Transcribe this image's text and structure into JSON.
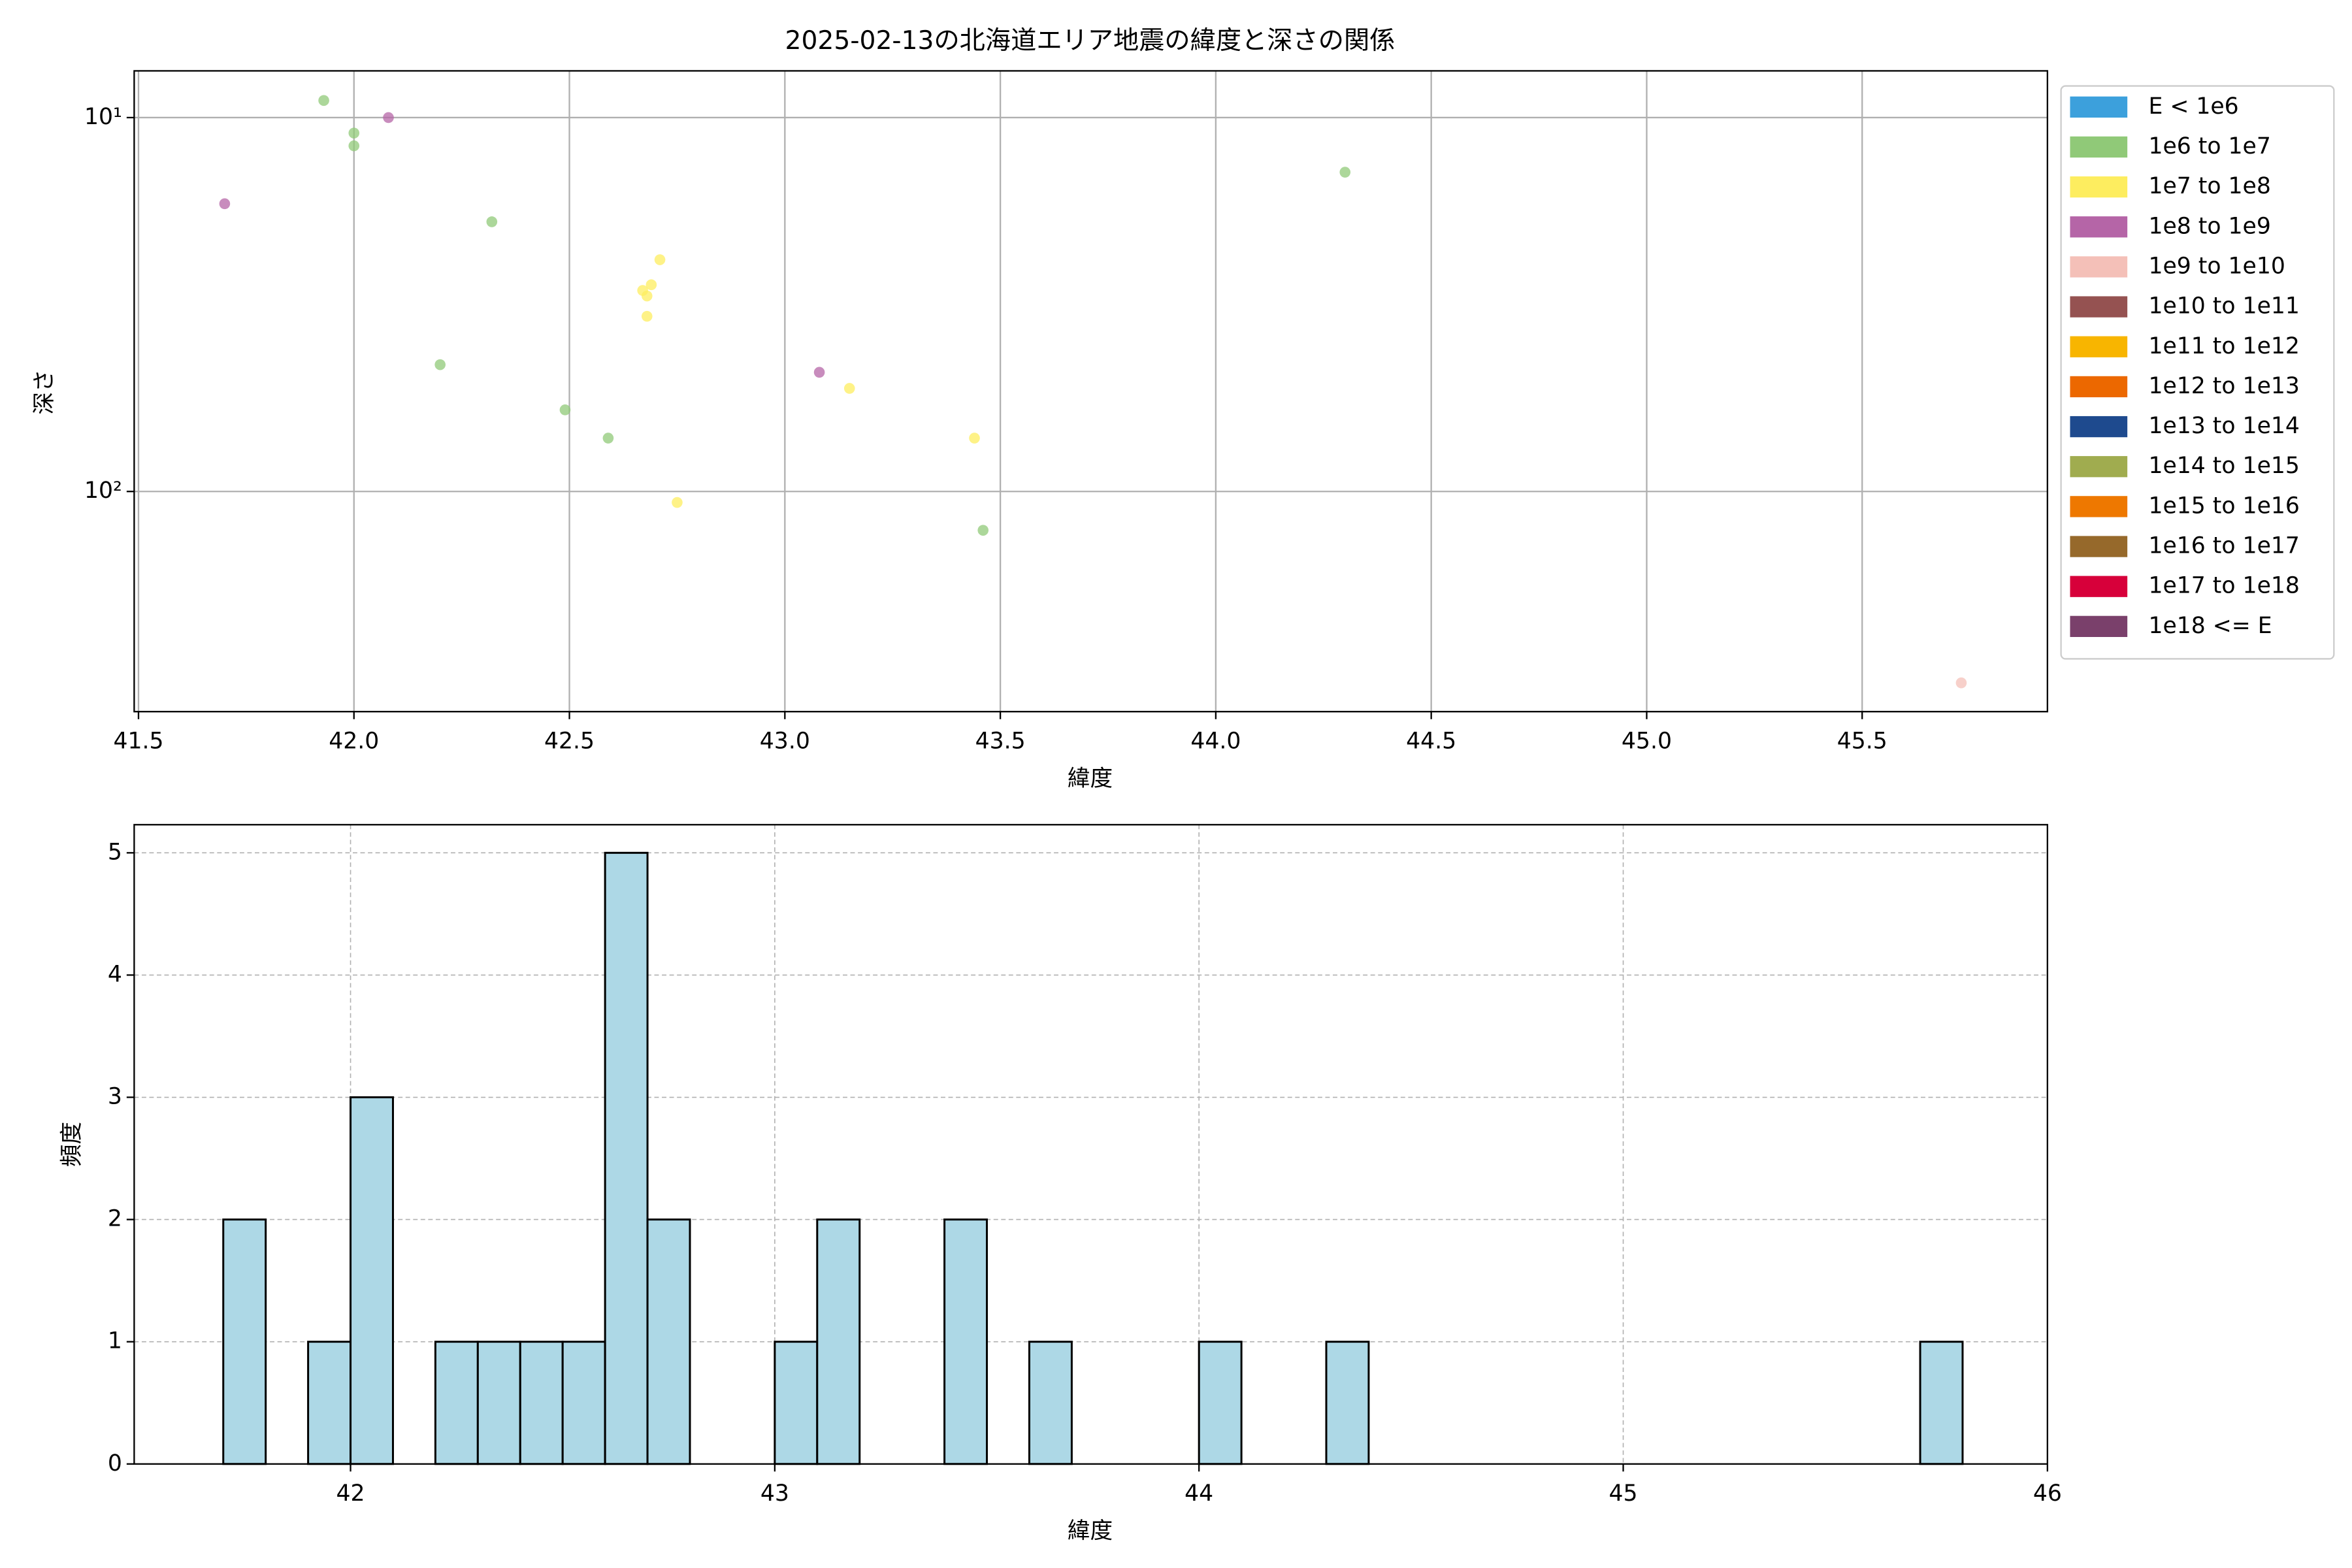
{
  "chart_data": [
    {
      "type": "scatter",
      "title": "2025-02-13の北海道エリア地震の緯度と深さの関係",
      "xlabel": "緯度",
      "ylabel": "深さ",
      "xlim": [
        41.49,
        45.93
      ],
      "ylim": [
        7.5,
        388
      ],
      "y_inverted": true,
      "y_log": true,
      "xticks": [
        41.5,
        {
          "value": 42,
          "label": "42.0"
        },
        42.5,
        {
          "value": 43,
          "label": "43.0"
        },
        43.5,
        {
          "value": 44,
          "label": "44.0"
        },
        44.5,
        {
          "value": 45,
          "label": "45.0"
        },
        45.5
      ],
      "yticks": [
        {
          "value": 10,
          "label": "10¹"
        },
        {
          "value": 100,
          "label": "10²"
        }
      ],
      "grid": true,
      "grid_linestyle": "solid",
      "legend": "outside-right",
      "series": [
        {
          "name": "E < 1e6",
          "color": "#3ca0dc",
          "x": [],
          "y": []
        },
        {
          "name": "1e6 to 1e7",
          "color": "#90c978",
          "x": [
            41.93,
            42.0,
            42.0,
            42.32,
            42.2,
            42.49,
            42.59,
            43.46,
            44.3
          ],
          "y": [
            9.0,
            11,
            11.9,
            19,
            45.8,
            60.5,
            72,
            127,
            14
          ]
        },
        {
          "name": "1e7 to 1e8",
          "color": "#fded5f",
          "x": [
            42.71,
            42.69,
            42.67,
            42.68,
            42.68,
            42.75,
            43.15,
            43.44
          ],
          "y": [
            24,
            28,
            29,
            30,
            34,
            107,
            53,
            72
          ]
        },
        {
          "name": "1e8 to 1e9",
          "color": "#b565a7",
          "x": [
            41.7,
            42.08,
            43.08
          ],
          "y": [
            17,
            10,
            48
          ]
        },
        {
          "name": "1e9 to 1e10",
          "color": "#f4c0b8",
          "x": [
            45.73
          ],
          "y": [
            325
          ]
        },
        {
          "name": "1e10 to 1e11",
          "color": "#955251",
          "x": [],
          "y": []
        },
        {
          "name": "1e11 to 1e12",
          "color": "#f8b500",
          "x": [],
          "y": []
        },
        {
          "name": "1e12 to 1e13",
          "color": "#ec6800",
          "x": [],
          "y": []
        },
        {
          "name": "1e13 to 1e14",
          "color": "#1e4a8e",
          "x": [],
          "y": []
        },
        {
          "name": "1e14 to 1e15",
          "color": "#a0ac4f",
          "x": [],
          "y": []
        },
        {
          "name": "1e15 to 1e16",
          "color": "#ee7800",
          "x": [],
          "y": []
        },
        {
          "name": "1e16 to 1e17",
          "color": "#96692b",
          "x": [],
          "y": []
        },
        {
          "name": "1e17 to 1e18",
          "color": "#d7003a",
          "x": [],
          "y": []
        },
        {
          "name": "1e18 <= E",
          "color": "#7a406b",
          "x": [],
          "y": []
        }
      ]
    },
    {
      "type": "histogram",
      "xlabel": "緯度",
      "ylabel": "頻度",
      "xlim": [
        41.49,
        46
      ],
      "ylim": [
        0,
        5.23
      ],
      "xticks": [
        42,
        43,
        44,
        45,
        46
      ],
      "yticks": [
        0,
        1,
        2,
        3,
        4,
        5
      ],
      "grid": true,
      "grid_linestyle": "dashed",
      "color": "#add8e6",
      "edgecolor": "#000000",
      "bins": [
        41.7,
        41.8,
        41.9,
        42.0,
        42.1,
        42.2,
        42.3,
        42.4,
        42.5,
        42.6,
        42.7,
        42.8,
        42.9,
        43.0,
        43.1,
        43.2,
        43.3,
        43.4,
        43.5,
        43.6,
        43.7,
        43.8,
        43.9,
        44.0,
        44.1,
        44.2,
        44.3,
        44.4,
        44.5,
        44.6,
        44.7,
        44.8,
        44.9,
        45.0,
        45.1,
        45.2,
        45.3,
        45.4,
        45.5,
        45.6,
        45.7,
        45.8
      ],
      "values": [
        2,
        0,
        1,
        3,
        0,
        1,
        1,
        1,
        1,
        5,
        2,
        0,
        0,
        1,
        2,
        0,
        0,
        2,
        0,
        1,
        0,
        0,
        0,
        1,
        0,
        0,
        1,
        0,
        0,
        0,
        0,
        0,
        0,
        0,
        0,
        0,
        0,
        0,
        0,
        0,
        1
      ]
    }
  ]
}
